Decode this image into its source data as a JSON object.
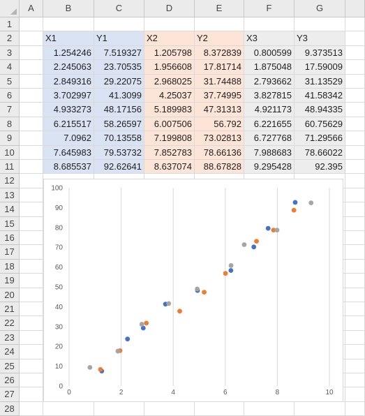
{
  "columns": [
    "A",
    "B",
    "C",
    "D",
    "E",
    "F",
    "G"
  ],
  "rows": [
    "1",
    "2",
    "3",
    "4",
    "5",
    "6",
    "7",
    "8",
    "9",
    "10",
    "11",
    "12",
    "13",
    "14",
    "15",
    "16",
    "17",
    "18",
    "19",
    "20",
    "21",
    "22",
    "23",
    "24",
    "25",
    "26",
    "27",
    "28"
  ],
  "table": {
    "headers": [
      "X1",
      "Y1",
      "X2",
      "Y2",
      "X3",
      "Y3"
    ],
    "values": [
      [
        "1.254246",
        "7.519327",
        "1.205798",
        "8.372839",
        "0.800599",
        "9.373513"
      ],
      [
        "2.245063",
        "23.70535",
        "1.956608",
        "17.81714",
        "1.875048",
        "17.59009"
      ],
      [
        "2.849316",
        "29.22075",
        "2.968025",
        "31.74488",
        "2.793662",
        "31.13529"
      ],
      [
        "3.702997",
        "41.3099",
        "4.25037",
        "37.74995",
        "3.827815",
        "41.58342"
      ],
      [
        "4.933273",
        "48.17156",
        "5.189983",
        "47.31313",
        "4.921173",
        "48.94335"
      ],
      [
        "6.215517",
        "58.26597",
        "6.007506",
        "56.792",
        "6.221655",
        "60.75629"
      ],
      [
        "7.0962",
        "70.13558",
        "7.199808",
        "73.02813",
        "6.727768",
        "71.29566"
      ],
      [
        "7.645983",
        "79.53732",
        "7.852783",
        "78.66136",
        "7.988683",
        "78.66022"
      ],
      [
        "8.685537",
        "92.62641",
        "8.637074",
        "88.67828",
        "9.295428",
        "92.395"
      ]
    ]
  },
  "colors": {
    "blue_fill": "#dae3f3",
    "orange_fill": "#fce4d6",
    "gray_fill": "#ededed",
    "series1": "#4472c4",
    "series2": "#ed7d31",
    "series3": "#a5a5a5"
  },
  "chart_data": {
    "type": "scatter",
    "xlim": [
      0,
      10
    ],
    "ylim": [
      0,
      100
    ],
    "x_ticks": [
      "0",
      "2",
      "4",
      "6",
      "8",
      "10"
    ],
    "y_ticks": [
      "0",
      "10",
      "20",
      "30",
      "40",
      "50",
      "60",
      "70",
      "80",
      "90",
      "100"
    ],
    "grid": "vertical",
    "series": [
      {
        "x": [
          1.254246,
          2.245063,
          2.849316,
          3.702997,
          4.933273,
          6.215517,
          7.0962,
          7.645983,
          8.685537
        ],
        "y": [
          7.519327,
          23.70535,
          29.22075,
          41.3099,
          48.17156,
          58.26597,
          70.13558,
          79.53732,
          92.62641
        ]
      },
      {
        "x": [
          1.205798,
          1.956608,
          2.968025,
          4.25037,
          5.189983,
          6.007506,
          7.199808,
          7.852783,
          8.637074
        ],
        "y": [
          8.372839,
          17.81714,
          31.74488,
          37.74995,
          47.31313,
          56.792,
          73.02813,
          78.66136,
          88.67828
        ]
      },
      {
        "x": [
          0.800599,
          1.875048,
          2.793662,
          3.827815,
          4.921173,
          6.221655,
          6.727768,
          7.988683,
          9.295428
        ],
        "y": [
          9.373513,
          17.59009,
          31.13529,
          41.58342,
          48.94335,
          60.75629,
          71.29566,
          78.66022,
          92.395
        ]
      }
    ]
  }
}
